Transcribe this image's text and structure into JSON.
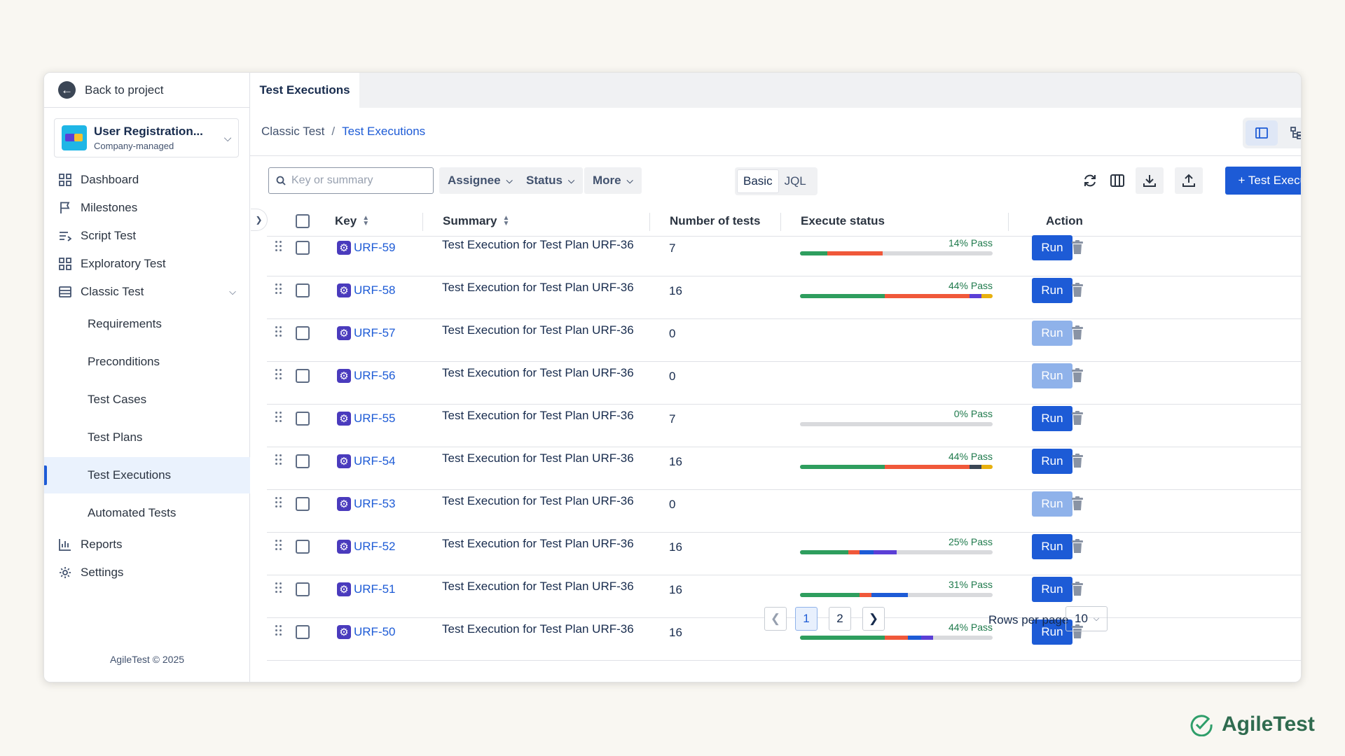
{
  "sidebar": {
    "back_label": "Back to project",
    "project_name": "User Registration...",
    "project_type": "Company-managed",
    "items": [
      {
        "label": "Dashboard",
        "icon": "dashboard-icon"
      },
      {
        "label": "Milestones",
        "icon": "flag-icon"
      },
      {
        "label": "Script Test",
        "icon": "script-icon"
      },
      {
        "label": "Exploratory Test",
        "icon": "grid-icon"
      },
      {
        "label": "Classic Test",
        "icon": "table-icon"
      }
    ],
    "sub_items": [
      "Requirements",
      "Preconditions",
      "Test Cases",
      "Test Plans",
      "Test Executions",
      "Automated Tests"
    ],
    "active_sub_item": "Test Executions",
    "bottom_items": [
      {
        "label": "Reports",
        "icon": "chart-icon"
      },
      {
        "label": "Settings",
        "icon": "gear-icon"
      }
    ],
    "copyright": "AgileTest © 2025"
  },
  "tabs": {
    "active": "Test Executions"
  },
  "breadcrumb": {
    "parent": "Classic Test",
    "separator": "/",
    "current": "Test Executions"
  },
  "toolbar": {
    "search_placeholder": "Key or summary",
    "assignee": "Assignee",
    "status": "Status",
    "more": "More",
    "mode_basic": "Basic",
    "mode_jql": "JQL",
    "primary_button": "+ Test Execution"
  },
  "table": {
    "headers": {
      "key": "Key",
      "summary": "Summary",
      "number_of_tests": "Number of tests",
      "execute_status": "Execute status",
      "action": "Action"
    },
    "run_label": "Run",
    "rows": [
      {
        "key": "URF-59",
        "summary": "Test Execution for Test Plan URF-36",
        "tests": "7",
        "pass": "14% Pass",
        "segments": [
          {
            "color": "#2e9e5e",
            "pct": 14
          },
          {
            "color": "#f0583a",
            "pct": 29
          }
        ]
      },
      {
        "key": "URF-58",
        "summary": "Test Execution for Test Plan URF-36",
        "tests": "16",
        "pass": "44% Pass",
        "segments": [
          {
            "color": "#2e9e5e",
            "pct": 44
          },
          {
            "color": "#f0583a",
            "pct": 44
          },
          {
            "color": "#5b3fd6",
            "pct": 6
          },
          {
            "color": "#e8b10f",
            "pct": 6
          }
        ]
      },
      {
        "key": "URF-57",
        "summary": "Test Execution for Test Plan URF-36",
        "tests": "0",
        "pass": "",
        "segments": []
      },
      {
        "key": "URF-56",
        "summary": "Test Execution for Test Plan URF-36",
        "tests": "0",
        "pass": "",
        "segments": []
      },
      {
        "key": "URF-55",
        "summary": "Test Execution for Test Plan URF-36",
        "tests": "7",
        "pass": "0% Pass",
        "segments": [
          {
            "color": "#d9dadd",
            "pct": 100
          }
        ]
      },
      {
        "key": "URF-54",
        "summary": "Test Execution for Test Plan URF-36",
        "tests": "16",
        "pass": "44% Pass",
        "segments": [
          {
            "color": "#2e9e5e",
            "pct": 44
          },
          {
            "color": "#f0583a",
            "pct": 44
          },
          {
            "color": "#3b4655",
            "pct": 6
          },
          {
            "color": "#e8b10f",
            "pct": 6
          }
        ]
      },
      {
        "key": "URF-53",
        "summary": "Test Execution for Test Plan URF-36",
        "tests": "0",
        "pass": "",
        "segments": []
      },
      {
        "key": "URF-52",
        "summary": "Test Execution for Test Plan URF-36",
        "tests": "16",
        "pass": "25% Pass",
        "segments": [
          {
            "color": "#2e9e5e",
            "pct": 25
          },
          {
            "color": "#f0583a",
            "pct": 6
          },
          {
            "color": "#1d5bd6",
            "pct": 7
          },
          {
            "color": "#5b3fd6",
            "pct": 12
          }
        ]
      },
      {
        "key": "URF-51",
        "summary": "Test Execution for Test Plan URF-36",
        "tests": "16",
        "pass": "31% Pass",
        "segments": [
          {
            "color": "#2e9e5e",
            "pct": 31
          },
          {
            "color": "#f0583a",
            "pct": 6
          },
          {
            "color": "#1d5bd6",
            "pct": 19
          }
        ]
      },
      {
        "key": "URF-50",
        "summary": "Test Execution for Test Plan URF-36",
        "tests": "16",
        "pass": "44% Pass",
        "segments": [
          {
            "color": "#2e9e5e",
            "pct": 44
          },
          {
            "color": "#f0583a",
            "pct": 12
          },
          {
            "color": "#1d5bd6",
            "pct": 7
          },
          {
            "color": "#5b3fd6",
            "pct": 6
          }
        ]
      }
    ]
  },
  "pagination": {
    "pages": [
      "1",
      "2"
    ],
    "current": "1",
    "rows_per_page_label": "Rows per page",
    "rows_per_page": "10"
  },
  "brand": {
    "name": "AgileTest"
  },
  "colors": {
    "primary": "#1d5bd6",
    "pass_green": "#2e9e5e",
    "fail_red": "#f0583a",
    "brand_green": "#2f6b4f"
  }
}
